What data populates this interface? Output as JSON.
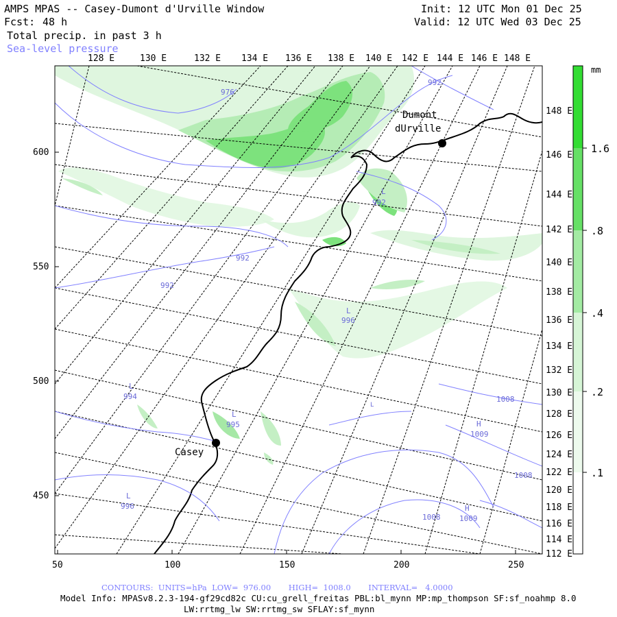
{
  "header": {
    "model_title": "AMPS MPAS -- Casey-Dumont d'Urville Window",
    "fcst_label": "Fcst:",
    "fcst_value": "48 h",
    "field1": "Total precip. in past 3 h",
    "field2": "Sea-level pressure",
    "init": "Init: 12 UTC Mon 01 Dec 25",
    "valid": "Valid: 12 UTC Wed 03 Dec 25"
  },
  "map": {
    "top_lon_labels": [
      "128 E",
      "130 E",
      "132 E",
      "134 E",
      "136 E",
      "138 E",
      "140 E",
      "142 E",
      "144 E",
      "146 E",
      "148 E"
    ],
    "right_lon_labels": [
      "148 E",
      "146 E",
      "144 E",
      "142 E",
      "140 E",
      "138 E",
      "136 E",
      "134 E",
      "132 E",
      "130 E",
      "128 E",
      "126 E",
      "124 E",
      "122 E",
      "120 E",
      "118 E",
      "116 E",
      "114 E",
      "112 E"
    ],
    "left_y_ticks": [
      "600",
      "550",
      "500",
      "450"
    ],
    "bottom_x_ticks": [
      "50",
      "100",
      "150",
      "200",
      "250"
    ],
    "stations": [
      "Casey",
      "Dumont",
      "dUrville"
    ],
    "pressure_labels": [
      "976",
      "992",
      "992",
      "992",
      "992",
      "996",
      "994",
      "995",
      "996",
      "1008",
      "1008",
      "1008",
      "1009",
      "1009"
    ],
    "centers": [
      "L",
      "L",
      "L",
      "L",
      "L",
      "H",
      "H",
      "L"
    ],
    "colors": {
      "contour": "#8080ff",
      "precip_light": "#d9f5d9",
      "precip_mid": "#a6e8a6",
      "precip_heavy": "#5fdc5f"
    }
  },
  "colorbar": {
    "unit": "mm",
    "labels": [
      "1.6",
      ".8",
      ".4",
      ".2",
      ".1"
    ]
  },
  "footer": {
    "contours": "CONTOURS:  UNITS=hPa  LOW=  976.00       HIGH=  1008.0       INTERVAL=   4.0000",
    "model_info": "Model Info: MPASv8.2.3-194-gf29cd82c CU:cu_grell_freitas PBL:bl_mynn MP:mp_thompson SF:sf_noahmp 8.0",
    "model_info2": "LW:rrtmg_lw SW:rrtmg_sw SFLAY:sf_mynn"
  }
}
